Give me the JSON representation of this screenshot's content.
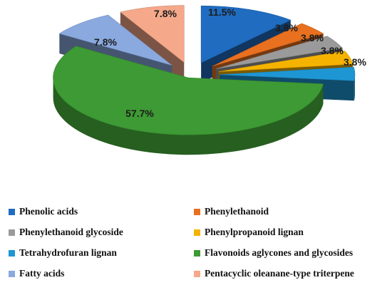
{
  "chart_data": {
    "type": "pie",
    "style": "3d-exploded",
    "categories": [
      "Phenolic acids",
      "Phenylethanoid",
      "Phenylethanoid glycoside",
      "Phenylpropanoid lignan",
      "Tetrahydrofuran lignan",
      "Flavonoids aglycones and glycosides",
      "Fatty acids",
      "Pentacyclic oleanane-type triterpene"
    ],
    "values": [
      11.5,
      3.8,
      3.8,
      3.8,
      3.8,
      57.7,
      7.8,
      7.8
    ],
    "labels": [
      "11.5%",
      "3.8%",
      "3.8%",
      "3.8%",
      "3.8%",
      "57.7%",
      "7.8%",
      "7.8%"
    ],
    "colors": [
      "#1f6cc1",
      "#e8701f",
      "#9a9a9a",
      "#f5b300",
      "#1e96d4",
      "#3d9a34",
      "#8aa9df",
      "#f5a88a"
    ],
    "legend_position": "bottom",
    "title": ""
  }
}
